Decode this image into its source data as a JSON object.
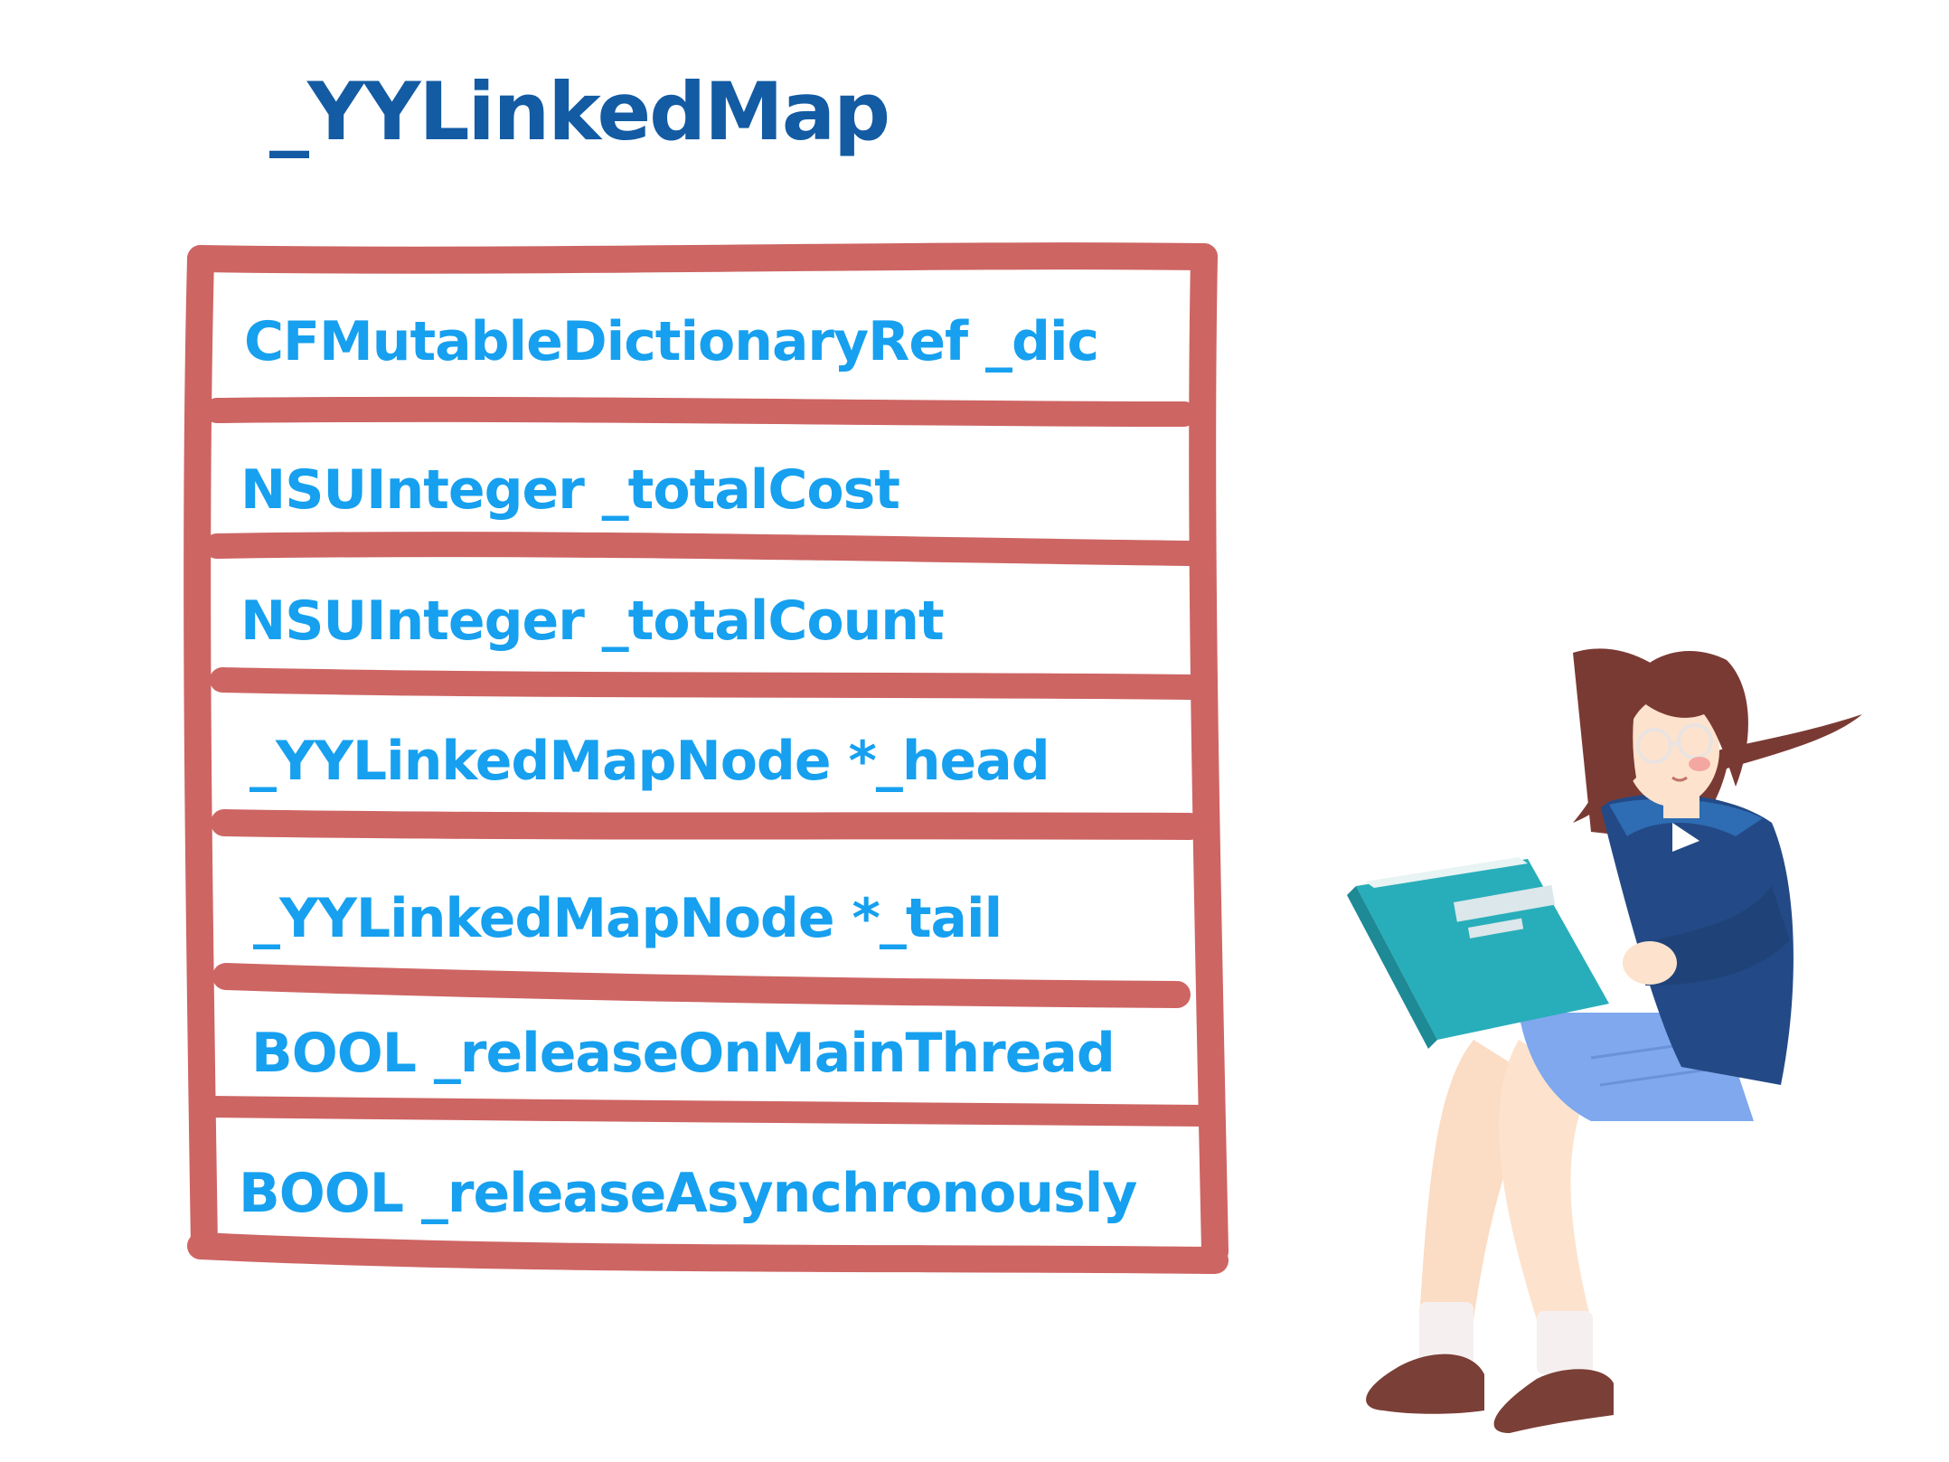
{
  "diagram": {
    "title": "_YYLinkedMap",
    "fields": [
      "CFMutableDictionaryRef _dic",
      "NSUInteger _totalCost",
      "NSUInteger _totalCount",
      "_YYLinkedMapNode *_head",
      "_YYLinkedMapNode *_tail",
      "BOOL _releaseOnMainThread",
      "BOOL _releaseAsynchronously"
    ]
  },
  "colors": {
    "title": "#135ba3",
    "field_text": "#16a0ef",
    "box_stroke": "#cd6563"
  },
  "illustration": {
    "icon": "girl-reading-book-illustration"
  }
}
